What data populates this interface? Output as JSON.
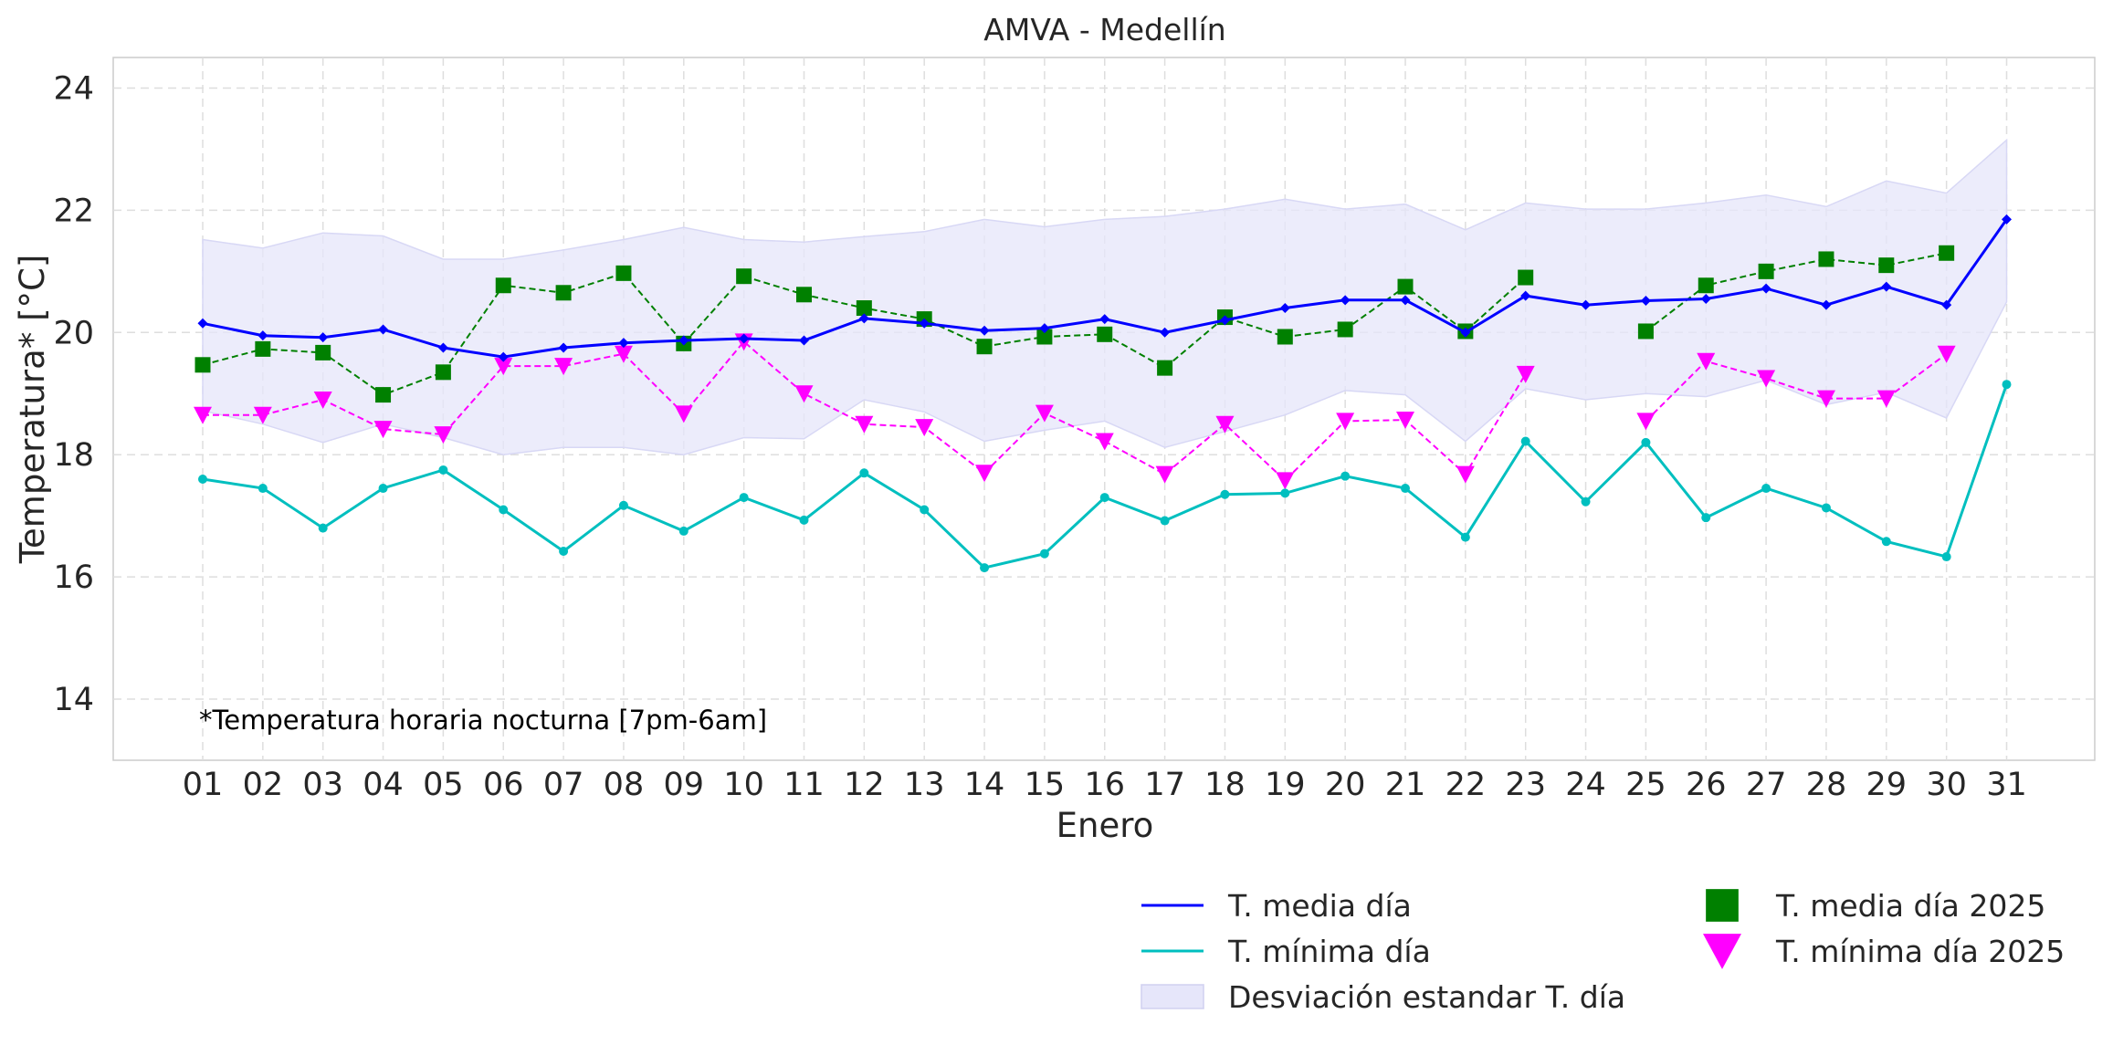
{
  "chart_data": {
    "type": "line",
    "title": "AMVA - Medellín",
    "xlabel": "Enero",
    "ylabel": "Temperatura* [°C]",
    "note": "*Temperatura horaria nocturna [7pm-6am]",
    "ylim": [
      13,
      24.5
    ],
    "y_ticks": [
      "14",
      "16",
      "18",
      "20",
      "22",
      "24"
    ],
    "y_tick_values": [
      14,
      16,
      18,
      20,
      22,
      24
    ],
    "grid": true,
    "legend_position": "bottom-right",
    "x": [
      "01",
      "02",
      "03",
      "04",
      "05",
      "06",
      "07",
      "08",
      "09",
      "10",
      "11",
      "12",
      "13",
      "14",
      "15",
      "16",
      "17",
      "18",
      "19",
      "20",
      "21",
      "22",
      "23",
      "24",
      "25",
      "26",
      "27",
      "28",
      "29",
      "30",
      "31"
    ],
    "series": [
      {
        "name": "T. media día",
        "style": "line",
        "color": "#0000ff",
        "values": [
          20.15,
          19.95,
          19.92,
          20.05,
          19.75,
          19.6,
          19.75,
          19.83,
          19.87,
          19.9,
          19.87,
          20.23,
          20.15,
          20.03,
          20.07,
          20.22,
          20.0,
          20.2,
          20.4,
          20.53,
          20.53,
          20.0,
          20.6,
          20.45,
          20.52,
          20.55,
          20.72,
          20.45,
          20.75,
          20.45,
          21.85
        ]
      },
      {
        "name": "T. mínima día",
        "style": "line",
        "color": "#00bfbf",
        "values": [
          17.6,
          17.45,
          16.8,
          17.45,
          17.75,
          17.1,
          16.42,
          17.17,
          16.75,
          17.3,
          16.93,
          17.7,
          17.1,
          16.15,
          16.38,
          17.3,
          16.92,
          17.35,
          17.37,
          17.65,
          17.45,
          16.65,
          18.22,
          17.23,
          18.2,
          16.97,
          17.45,
          17.13,
          16.58,
          16.33,
          19.15
        ]
      },
      {
        "name": "Desviación estandar T. día",
        "style": "band",
        "color": "#e6e6fa",
        "upper": [
          21.52,
          21.38,
          21.63,
          21.58,
          21.2,
          21.2,
          21.35,
          21.52,
          21.72,
          21.52,
          21.48,
          21.57,
          21.65,
          21.85,
          21.73,
          21.85,
          21.9,
          22.02,
          22.18,
          22.02,
          22.1,
          21.68,
          22.12,
          22.02,
          22.02,
          22.12,
          22.25,
          22.06,
          22.48,
          22.28,
          23.15
        ],
        "lower": [
          18.72,
          18.5,
          18.2,
          18.5,
          18.28,
          18.0,
          18.12,
          18.12,
          18.0,
          18.28,
          18.26,
          18.9,
          18.7,
          18.22,
          18.4,
          18.55,
          18.12,
          18.38,
          18.65,
          19.05,
          18.98,
          18.22,
          19.08,
          18.9,
          19.0,
          18.95,
          19.22,
          18.82,
          19.02,
          18.6,
          20.5
        ]
      },
      {
        "name": "T. media día 2025",
        "style": "markers-dashed",
        "marker": "square",
        "color": "#008000",
        "values": [
          19.47,
          19.73,
          19.67,
          18.98,
          19.35,
          20.77,
          20.65,
          20.97,
          19.82,
          20.92,
          20.62,
          20.4,
          20.22,
          19.77,
          19.93,
          19.97,
          19.42,
          20.25,
          19.93,
          20.05,
          20.75,
          20.02,
          20.9,
          null,
          20.02,
          20.77,
          21.0,
          21.2,
          21.1,
          21.3,
          null
        ]
      },
      {
        "name": "T. mínima día 2025",
        "style": "markers-dashed",
        "marker": "triangle-down",
        "color": "#ff00ff",
        "values": [
          18.65,
          18.65,
          18.9,
          18.42,
          18.33,
          19.45,
          19.45,
          19.65,
          18.67,
          19.85,
          19.0,
          18.5,
          18.45,
          17.7,
          18.68,
          18.22,
          17.68,
          18.5,
          17.58,
          18.55,
          18.57,
          17.68,
          19.32,
          null,
          18.55,
          19.53,
          19.25,
          18.92,
          18.92,
          19.65,
          null
        ]
      }
    ]
  }
}
